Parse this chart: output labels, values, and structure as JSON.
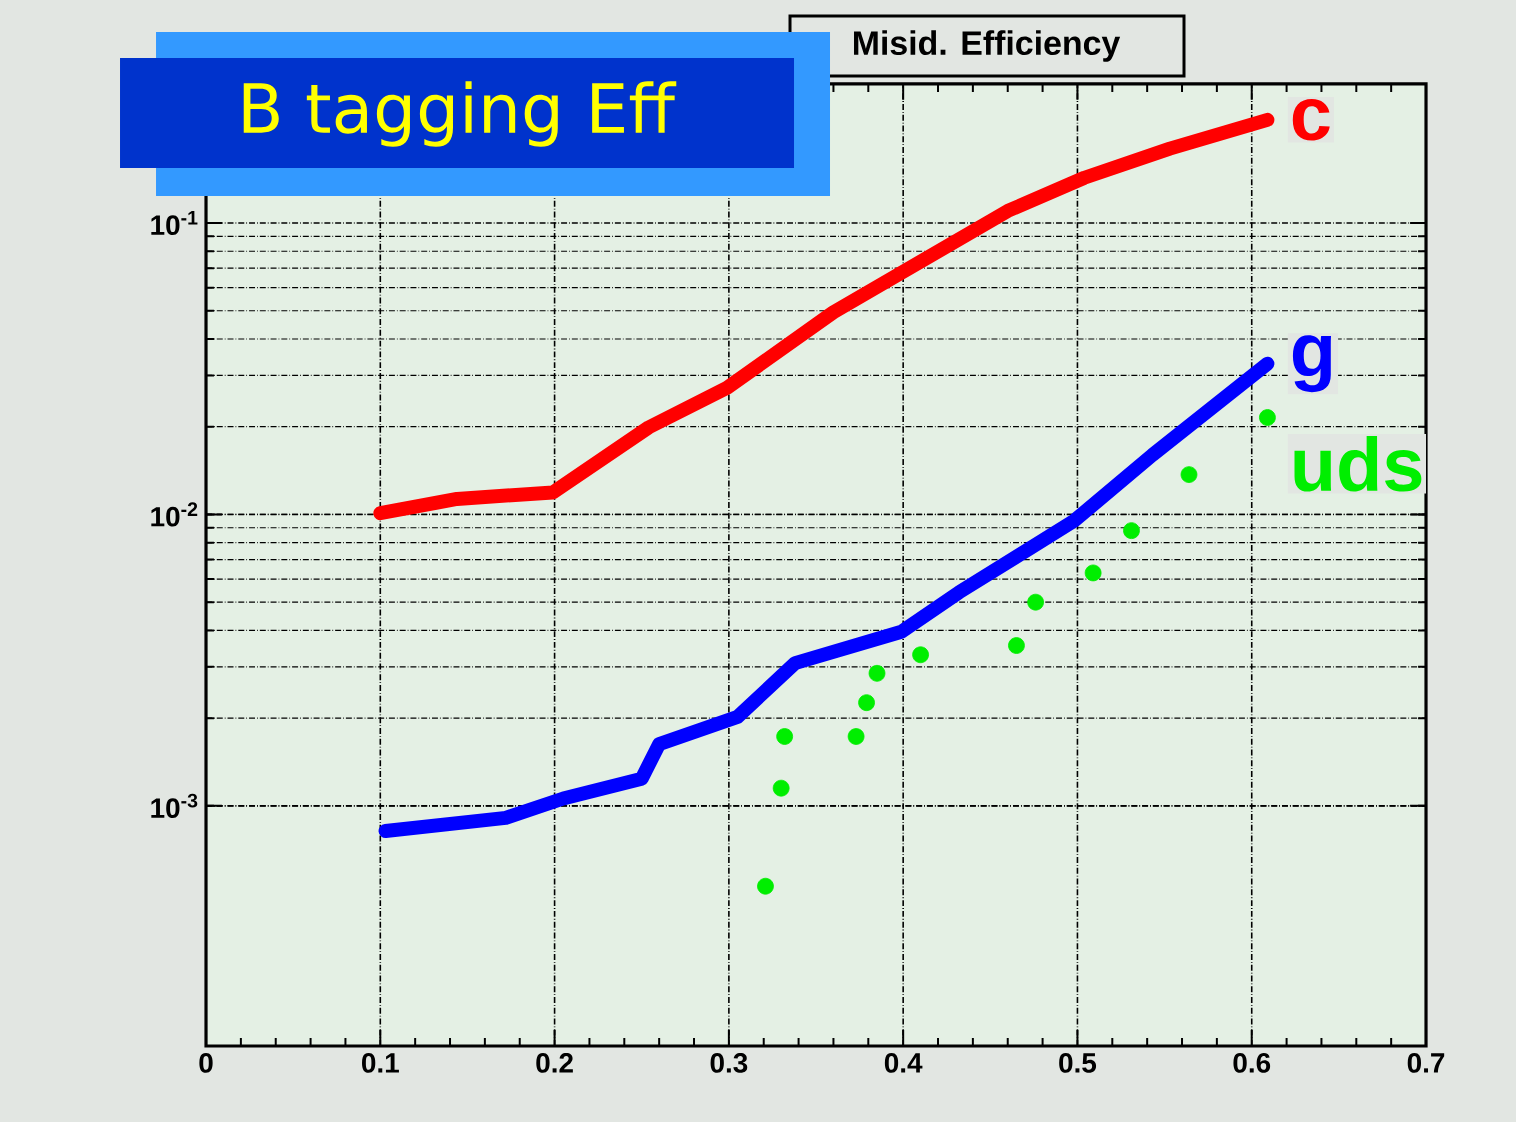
{
  "chart_data": {
    "type": "line",
    "title": "B tagging Eff",
    "subtitle": "Misid. Efficiency",
    "log": "y",
    "grid": true,
    "legend": false,
    "line_style": "solid",
    "xlim": [
      0,
      0.7
    ],
    "xticks": [
      0,
      0.1,
      0.2,
      0.3,
      0.4,
      0.5,
      0.6,
      0.7
    ],
    "ylim": [
      0.00015,
      0.3
    ],
    "yticks": [
      {
        "value": 0.001,
        "label": "10$^{-3}$"
      },
      {
        "value": 0.01,
        "label": "10$^{-2}$"
      },
      {
        "value": 0.1,
        "label": "10$^{-1}$"
      }
    ],
    "series": [
      {
        "name": "c",
        "color": "#ff0000",
        "x": [
          0.1,
          0.144,
          0.199,
          0.254,
          0.299,
          0.36,
          0.399,
          0.46,
          0.504,
          0.553,
          0.609
        ],
        "values": [
          0.0101,
          0.0113,
          0.0119,
          0.0199,
          0.0272,
          0.0494,
          0.0675,
          0.11,
          0.143,
          0.18,
          0.226
        ]
      },
      {
        "name": "g",
        "color": "#0000ff",
        "x": [
          0.103,
          0.172,
          0.205,
          0.25,
          0.26,
          0.305,
          0.338,
          0.399,
          0.432,
          0.498,
          0.543,
          0.609
        ],
        "values": [
          0.00082,
          0.00091,
          0.00106,
          0.00124,
          0.00163,
          0.00202,
          0.00309,
          0.00396,
          0.0054,
          0.0095,
          0.016,
          0.0329
        ]
      },
      {
        "name": "uds",
        "type": "scatter",
        "color": "#00ee00",
        "x": [
          0.321,
          0.33,
          0.332,
          0.373,
          0.379,
          0.385,
          0.41,
          0.465,
          0.476,
          0.509,
          0.531,
          0.564,
          0.609
        ],
        "values": [
          0.00053,
          0.00115,
          0.00173,
          0.00173,
          0.00226,
          0.00285,
          0.0033,
          0.00355,
          0.005,
          0.0063,
          0.0088,
          0.0137,
          0.0215
        ]
      }
    ]
  }
}
